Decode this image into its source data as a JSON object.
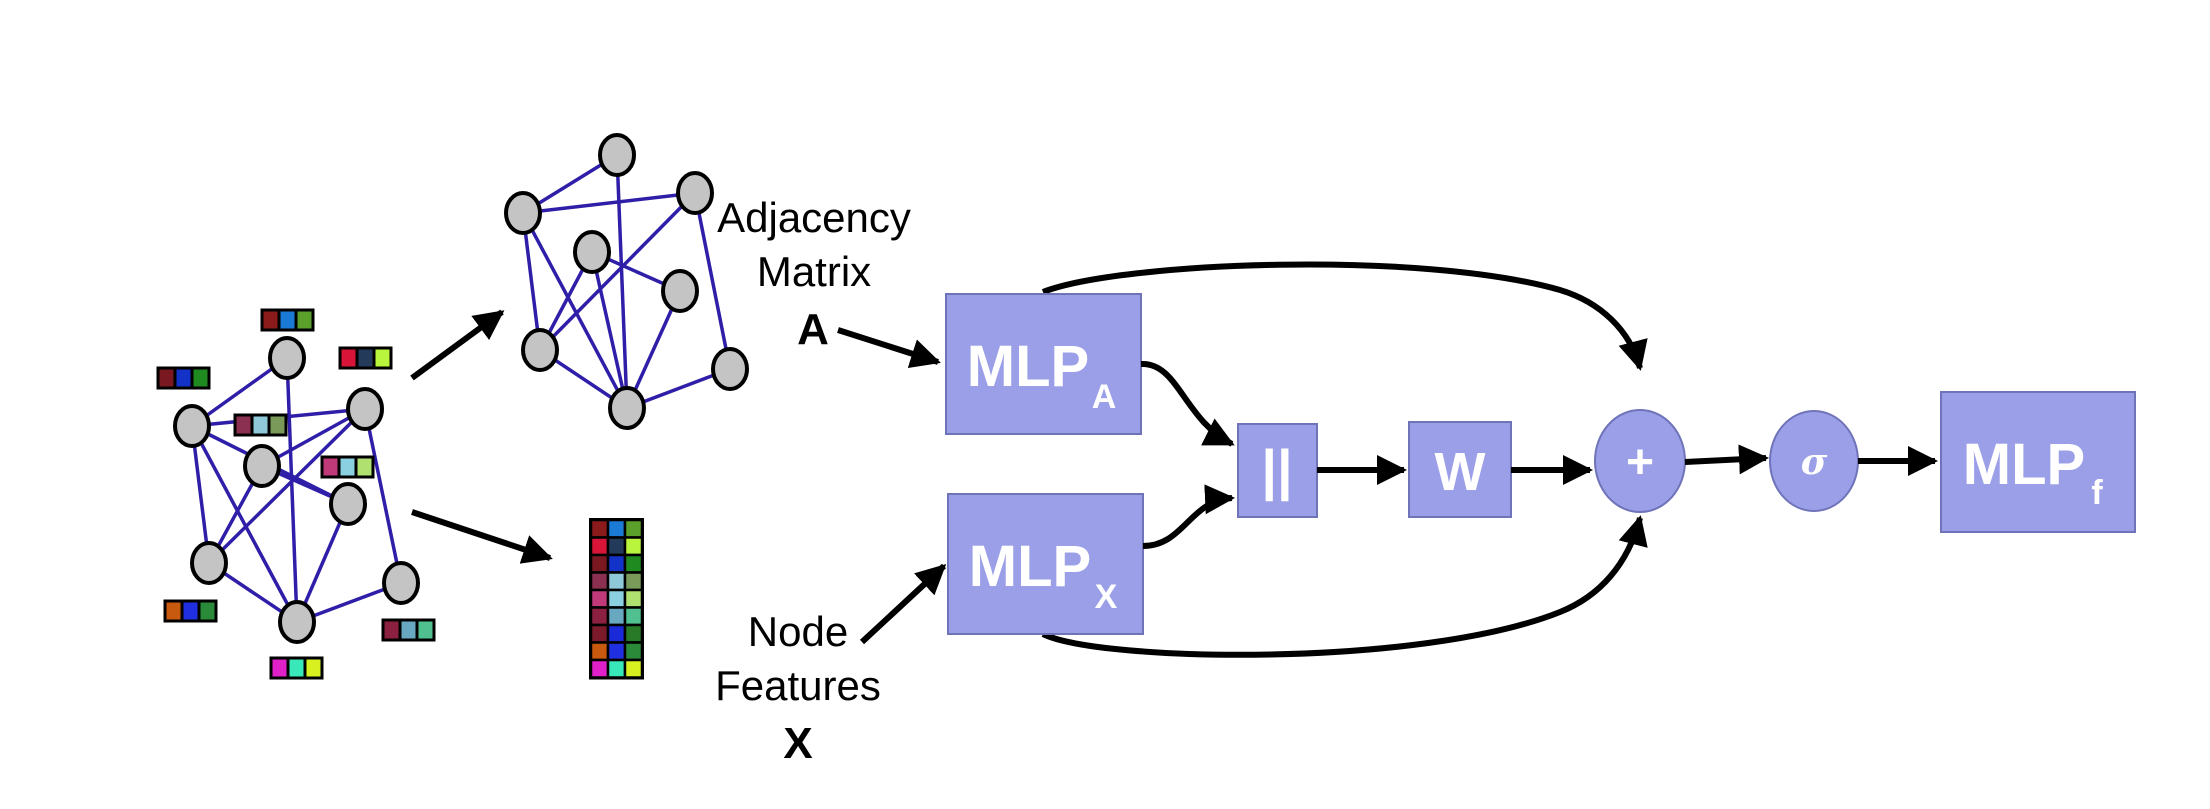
{
  "colors": {
    "edge": "#2f1fa8",
    "node_fill": "#c4c4c4",
    "node_stroke": "#000000",
    "block_fill": "#9b9fe8",
    "block_stroke": "#6f73b8",
    "arrow": "#000000"
  },
  "labels": {
    "adjacency_line1": "Adjacency",
    "adjacency_line2": "Matrix",
    "adjacency_symbol": "A",
    "features_line1": "Node",
    "features_line2": "Features",
    "features_symbol": "X"
  },
  "blocks": {
    "mlp_a_main": "MLP",
    "mlp_a_sub": "A",
    "mlp_x_main": "MLP",
    "mlp_x_sub": "X",
    "concat": "||",
    "weight": "W",
    "sum": "+",
    "activation": "σ",
    "mlp_f_main": "MLP",
    "mlp_f_sub": "f"
  },
  "feature_palette": [
    [
      "#8b1a1a",
      "#1a7ad6",
      "#5aa02a"
    ],
    [
      "#d81538",
      "#243a5a",
      "#b8f53c"
    ],
    [
      "#7a1822",
      "#1232c8",
      "#1f8a1f"
    ],
    [
      "#8b3050",
      "#8fc8d8",
      "#7a9a5a"
    ],
    [
      "#c03a7a",
      "#8ad0e0",
      "#b0e070"
    ],
    [
      "#8b2040",
      "#68a8c0",
      "#50c090"
    ],
    [
      "#7a1a2a",
      "#1a2ad8",
      "#287a28"
    ],
    [
      "#c85a10",
      "#2030e0",
      "#2a8a3a"
    ],
    [
      "#e020c8",
      "#38e8b8",
      "#d8f020"
    ]
  ]
}
